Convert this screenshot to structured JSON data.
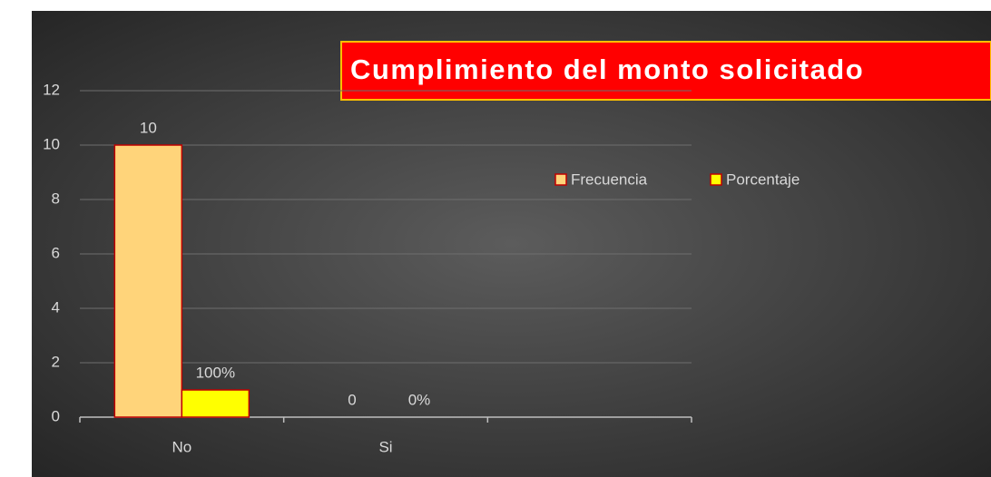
{
  "chart_data": {
    "type": "bar",
    "title": "Cumplimiento del monto solicitado",
    "categories": [
      "No",
      "Si",
      null
    ],
    "series": [
      {
        "name": "Frecuencia",
        "color": "#ffd47a",
        "values": [
          10,
          0,
          null
        ]
      },
      {
        "name": "Porcentaje",
        "color": "#ffff00",
        "values": [
          1,
          0,
          null
        ],
        "value_labels": [
          "100%",
          "0%",
          null
        ]
      }
    ],
    "ylim": [
      0,
      12
    ],
    "yticks": [
      0,
      2,
      4,
      6,
      8,
      10,
      12
    ],
    "grid": true,
    "legend": "right"
  }
}
